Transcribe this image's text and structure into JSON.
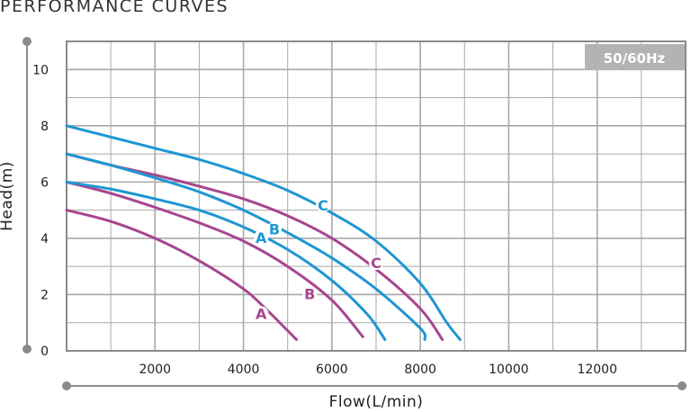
{
  "title": "PERFORMANCE CURVES",
  "badge": "50/60Hz",
  "colors": {
    "blue": "#1f96d2",
    "purple": "#a6468f",
    "grid": "#a9a9a9",
    "frame": "#8a8a8a",
    "badge_bg": "#b3b3b3"
  },
  "chart_data": {
    "type": "line",
    "xlabel": "Flow(L/min)",
    "ylabel": "Head(m)",
    "xlim": [
      0,
      14000
    ],
    "ylim": [
      0,
      11
    ],
    "xticks": [
      2000,
      4000,
      6000,
      8000,
      10000,
      12000
    ],
    "yticks": [
      0,
      2,
      4,
      6,
      8,
      10
    ],
    "grid": true,
    "series": [
      {
        "name": "A",
        "color": "purple",
        "label_at": [
          4400,
          1.3
        ],
        "points": [
          [
            0,
            5.0
          ],
          [
            1000,
            4.6
          ],
          [
            2000,
            4.0
          ],
          [
            3000,
            3.2
          ],
          [
            4000,
            2.2
          ],
          [
            4500,
            1.5
          ],
          [
            5200,
            0.4
          ]
        ]
      },
      {
        "name": "B",
        "color": "purple",
        "label_at": [
          5500,
          2.0
        ],
        "points": [
          [
            0,
            6.0
          ],
          [
            1000,
            5.6
          ],
          [
            2000,
            5.1
          ],
          [
            3000,
            4.55
          ],
          [
            4000,
            3.9
          ],
          [
            5000,
            3.0
          ],
          [
            6000,
            1.8
          ],
          [
            6700,
            0.5
          ]
        ]
      },
      {
        "name": "C",
        "color": "purple",
        "label_at": [
          7000,
          3.1
        ],
        "points": [
          [
            0,
            7.0
          ],
          [
            1000,
            6.6
          ],
          [
            2000,
            6.25
          ],
          [
            3000,
            5.85
          ],
          [
            4000,
            5.4
          ],
          [
            5000,
            4.8
          ],
          [
            6000,
            4.0
          ],
          [
            7000,
            2.9
          ],
          [
            8000,
            1.5
          ],
          [
            8500,
            0.4
          ]
        ]
      },
      {
        "name": "A",
        "color": "blue",
        "label_at": [
          4400,
          4.0
        ],
        "points": [
          [
            0,
            6.0
          ],
          [
            1000,
            5.75
          ],
          [
            2000,
            5.4
          ],
          [
            3000,
            5.0
          ],
          [
            4000,
            4.4
          ],
          [
            5000,
            3.6
          ],
          [
            6000,
            2.5
          ],
          [
            6800,
            1.3
          ],
          [
            7200,
            0.4
          ]
        ]
      },
      {
        "name": "B",
        "color": "blue",
        "label_at": [
          4700,
          4.3
        ],
        "points": [
          [
            0,
            7.0
          ],
          [
            1000,
            6.6
          ],
          [
            2000,
            6.15
          ],
          [
            3000,
            5.65
          ],
          [
            4000,
            5.0
          ],
          [
            5000,
            4.2
          ],
          [
            6000,
            3.3
          ],
          [
            7000,
            2.2
          ],
          [
            8000,
            0.8
          ],
          [
            8100,
            0.4
          ]
        ]
      },
      {
        "name": "C",
        "color": "blue",
        "label_at": [
          5800,
          5.15
        ],
        "points": [
          [
            0,
            8.0
          ],
          [
            1000,
            7.6
          ],
          [
            2000,
            7.2
          ],
          [
            3000,
            6.8
          ],
          [
            4000,
            6.3
          ],
          [
            5000,
            5.7
          ],
          [
            6000,
            4.9
          ],
          [
            7000,
            3.9
          ],
          [
            8000,
            2.4
          ],
          [
            8600,
            1.0
          ],
          [
            8900,
            0.4
          ]
        ]
      }
    ]
  }
}
